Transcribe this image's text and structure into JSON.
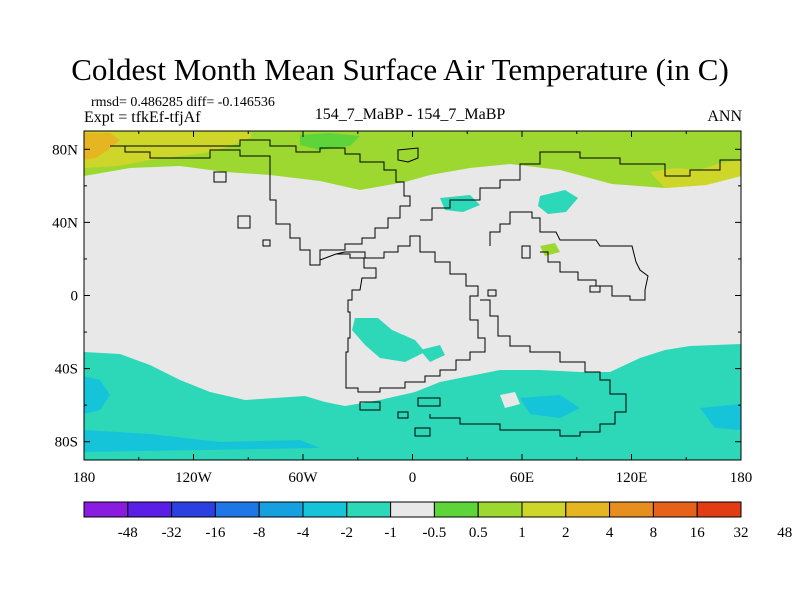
{
  "title": "Coldest Month Mean Surface Air Temperature (in C)",
  "stats": "rmsd= 0.486285  diff= -0.146536",
  "expt": "Expt = tfkEf-tfjAf",
  "center_label": "154_7_MaBP - 154_7_MaBP",
  "season": "ANN",
  "map": {
    "lon_range": [
      -180,
      180
    ],
    "lat_range": [
      -90,
      90
    ],
    "x_ticks": [
      {
        "value": -180,
        "label": "180"
      },
      {
        "value": -120,
        "label": "120W"
      },
      {
        "value": -60,
        "label": "60W"
      },
      {
        "value": 0,
        "label": "0"
      },
      {
        "value": 60,
        "label": "60E"
      },
      {
        "value": 120,
        "label": "120E"
      },
      {
        "value": 180,
        "label": "180"
      }
    ],
    "y_ticks": [
      {
        "value": 80,
        "label": "80N"
      },
      {
        "value": 40,
        "label": "40N"
      },
      {
        "value": 0,
        "label": "0"
      },
      {
        "value": -40,
        "label": "40S"
      },
      {
        "value": -80,
        "label": "80S"
      }
    ],
    "background_color": "#e8e8e8",
    "coast_color": "#000000"
  },
  "colorbar": {
    "colors": [
      "#8a1ce0",
      "#5a1ee6",
      "#2a40e0",
      "#1f76e6",
      "#16a0e0",
      "#15c4d8",
      "#2cd8b8",
      "#e8e8e8",
      "#5cd43a",
      "#9cd830",
      "#cfd62a",
      "#e6b622",
      "#e68e1e",
      "#e6621a",
      "#e23c14"
    ],
    "labels": [
      "-48",
      "-32",
      "-16",
      "-8",
      "-4",
      "-2",
      "-1",
      "-0.5",
      "0.5",
      "1",
      "2",
      "4",
      "8",
      "16",
      "32",
      "48"
    ]
  }
}
